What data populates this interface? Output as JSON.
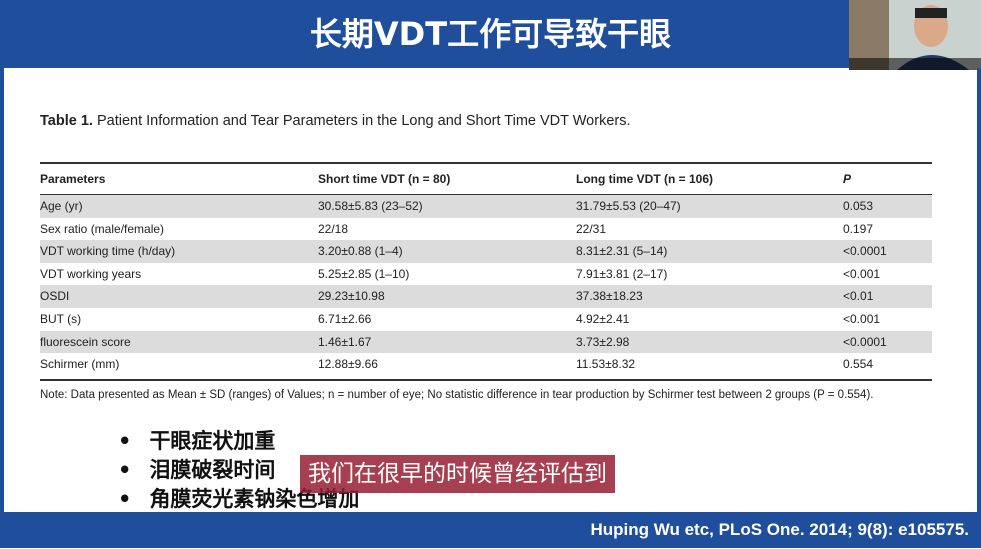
{
  "header": {
    "title": "长期VDT工作可导致干眼"
  },
  "table": {
    "caption_label": "Table 1.",
    "caption": "Patient Information and Tear Parameters in the Long and Short Time VDT Workers.",
    "columns": [
      "Parameters",
      "Short time VDT (n = 80)",
      "Long time VDT (n = 106)",
      "P"
    ],
    "rows": [
      [
        "Age (yr)",
        "30.58±5.83 (23–52)",
        "31.79±5.53 (20–47)",
        "0.053"
      ],
      [
        "Sex ratio (male/female)",
        "22/18",
        "22/31",
        "0.197"
      ],
      [
        "VDT working time (h/day)",
        "3.20±0.88 (1–4)",
        "8.31±2.31 (5–14)",
        "<0.0001"
      ],
      [
        "VDT working years",
        "5.25±2.85 (1–10)",
        "7.91±3.81 (2–17)",
        "<0.001"
      ],
      [
        "OSDI",
        "29.23±10.98",
        "37.38±18.23",
        "<0.01"
      ],
      [
        "BUT (s)",
        "6.71±2.66",
        "4.92±2.41",
        "<0.001"
      ],
      [
        "fluorescein score",
        "1.46±1.67",
        "3.73±2.98",
        "<0.0001"
      ],
      [
        "Schirmer (mm)",
        "12.88±9.66",
        "11.53±8.32",
        "0.554"
      ]
    ],
    "note": "Note: Data presented as Mean ± SD (ranges) of Values; n = number of eye; No statistic difference in tear production by Schirmer test between 2 groups (P = 0.554)."
  },
  "bullets": [
    "干眼症状加重",
    "泪膜破裂时间",
    "角膜荧光素钠染色增加"
  ],
  "subtitle": "我们在很早的时候曾经评估到",
  "footer": {
    "citation": "Huping Wu etc, PLoS One. 2014; 9(8): e105575."
  }
}
